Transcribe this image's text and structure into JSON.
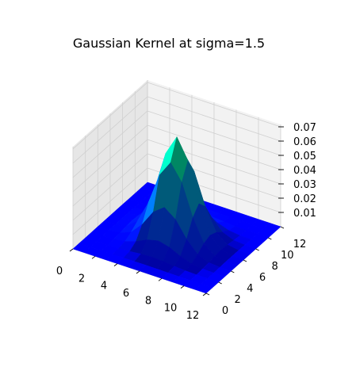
{
  "chart_data": {
    "type": "surface",
    "title": "Gaussian Kernel at sigma=1.5",
    "colormap": "winter",
    "grid": true,
    "x": [
      0,
      1,
      2,
      3,
      4,
      5,
      6,
      7,
      8,
      9,
      10,
      11,
      12
    ],
    "y": [
      0,
      1,
      2,
      3,
      4,
      5,
      6,
      7,
      8,
      9,
      10,
      11,
      12
    ],
    "sigma": 1.5,
    "center": [
      6,
      6
    ],
    "zmin": 0.0,
    "zmax": 0.0707,
    "xticks": [
      "0",
      "2",
      "4",
      "6",
      "8",
      "10",
      "12"
    ],
    "yticks": [
      "0",
      "2",
      "4",
      "6",
      "8",
      "10",
      "12"
    ],
    "zticks": [
      "0.01",
      "0.02",
      "0.03",
      "0.04",
      "0.05",
      "0.06",
      "0.07"
    ],
    "xlim": [
      0,
      12
    ],
    "ylim": [
      0,
      12
    ],
    "zlim": [
      0.0,
      0.0707
    ]
  },
  "colors": {
    "low": "#0000ff",
    "high": "#00ff80",
    "pane": "#f2f2f2",
    "pane_side": "#e6e6e6",
    "grid": "#d0d0d0",
    "edge": "#1a1aff"
  }
}
